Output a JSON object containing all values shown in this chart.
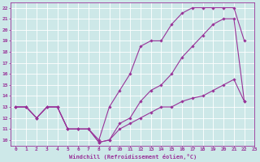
{
  "xlabel": "Windchill (Refroidissement éolien,°C)",
  "background_color": "#cde8e8",
  "grid_color": "#ffffff",
  "line_color": "#993399",
  "xlim": [
    -0.5,
    23
  ],
  "ylim": [
    9.5,
    22.5
  ],
  "xticks": [
    0,
    1,
    2,
    3,
    4,
    5,
    6,
    7,
    8,
    9,
    10,
    11,
    12,
    13,
    14,
    15,
    16,
    17,
    18,
    19,
    20,
    21,
    22,
    23
  ],
  "yticks": [
    10,
    11,
    12,
    13,
    14,
    15,
    16,
    17,
    18,
    19,
    20,
    21,
    22
  ],
  "line1_x": [
    0,
    1,
    2,
    3,
    4,
    5,
    6,
    7,
    8,
    9,
    10,
    11,
    12,
    13,
    14,
    15,
    16,
    17,
    18,
    19,
    20,
    21,
    22
  ],
  "line1_y": [
    13,
    13,
    12,
    13,
    13,
    11,
    11,
    11,
    10,
    13,
    14.5,
    16,
    18.5,
    19,
    19,
    20.5,
    21.5,
    22,
    22,
    22,
    22,
    22,
    19
  ],
  "line2_x": [
    0,
    1,
    2,
    3,
    4,
    5,
    6,
    7,
    8,
    9,
    10,
    11,
    12,
    13,
    14,
    15,
    16,
    17,
    18,
    19,
    20,
    21,
    22
  ],
  "line2_y": [
    13,
    13,
    12,
    13,
    13,
    11,
    11,
    11,
    9.8,
    10,
    11.5,
    12,
    13.5,
    14.5,
    15,
    16,
    17.5,
    18.5,
    19.5,
    20.5,
    21,
    21,
    13.5
  ],
  "line3_x": [
    0,
    1,
    2,
    3,
    4,
    5,
    6,
    7,
    8,
    9,
    10,
    11,
    12,
    13,
    14,
    15,
    16,
    17,
    18,
    19,
    20,
    21,
    22
  ],
  "line3_y": [
    13,
    13,
    12,
    13,
    13,
    11,
    11,
    11,
    9.8,
    10,
    11,
    11.5,
    12,
    12.5,
    13,
    13,
    13.5,
    13.8,
    14,
    14.5,
    15,
    15.5,
    13.5
  ]
}
